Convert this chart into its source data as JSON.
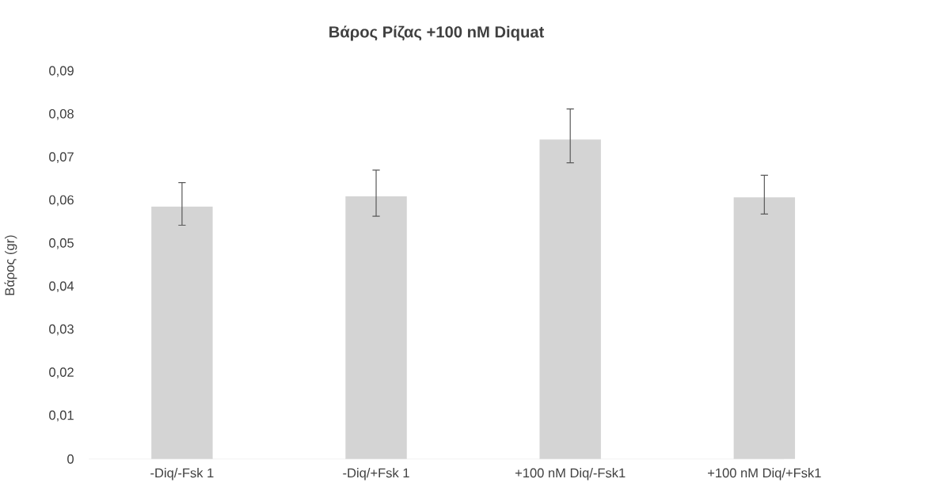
{
  "chart_data": {
    "type": "bar",
    "title": "Βάρος Ρίζας +100 nM Diquat",
    "ylabel": "Βάρος (gr)",
    "categories": [
      "-Diq/-Fsk 1",
      "-Diq/+Fsk 1",
      "+100 nM Diq/-Fsk1",
      "+100 nM Diq/+Fsk1"
    ],
    "values": [
      0.0586,
      0.061,
      0.0742,
      0.0608
    ],
    "errors": [
      [
        0.0543,
        0.0642
      ],
      [
        0.0564,
        0.0671
      ],
      [
        0.0688,
        0.0813
      ],
      [
        0.0569,
        0.0659
      ]
    ],
    "color": "#d4d4d4",
    "ylim": [
      0,
      0.09
    ],
    "yticks": [
      0,
      {
        "value": 0.01,
        "label": "0,01"
      },
      {
        "value": 0.02,
        "label": "0,02"
      },
      {
        "value": 0.03,
        "label": "0,03"
      },
      {
        "value": 0.04,
        "label": "0,04"
      },
      {
        "value": 0.05,
        "label": "0,05"
      },
      {
        "value": 0.06,
        "label": "0,06"
      },
      {
        "value": 0.07,
        "label": "0,07"
      },
      {
        "value": 0.08,
        "label": "0,08"
      },
      {
        "value": 0.09,
        "label": "0,09"
      }
    ]
  }
}
